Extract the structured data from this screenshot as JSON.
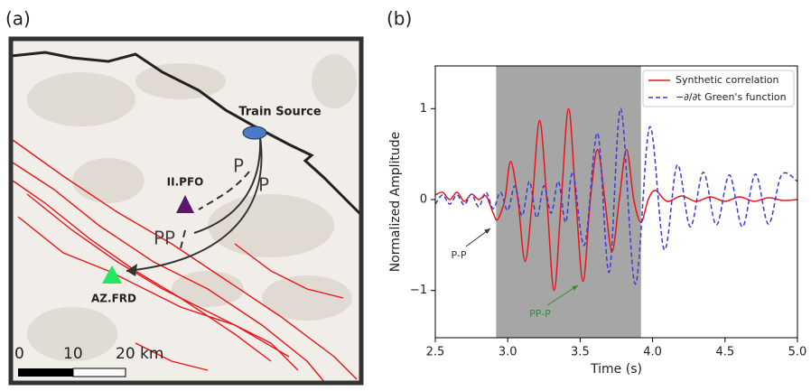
{
  "map": {
    "panel_label": "(a)",
    "source_label": "Train Source",
    "station_1": "II.PFO",
    "station_2": "AZ.FRD",
    "phase_1": "P",
    "phase_2": "P",
    "phase_3": "PP",
    "scale_ticks": [
      "0",
      "10",
      "20 km"
    ]
  },
  "chart_data": {
    "type": "line",
    "panel_label": "(b)",
    "xlabel": "Time (s)",
    "ylabel": "Normalized Amplitude",
    "xlim": [
      2.5,
      5.0
    ],
    "ylim": [
      -1.52,
      1.47
    ],
    "xticks": [
      2.5,
      {
        "value": 3,
        "label": "3.0"
      },
      3.5,
      {
        "value": 4,
        "label": "4.0"
      },
      4.5,
      {
        "value": 5,
        "label": "5.0"
      }
    ],
    "yticks": [
      {
        "value": -1,
        "label": "−1"
      },
      0,
      1
    ],
    "shaded_region": [
      2.92,
      3.92
    ],
    "shade_color": "#a6a6a6",
    "legend": "upper right",
    "annotations": [
      {
        "text": "P-P",
        "color": "#333333"
      },
      {
        "text": "PP-P",
        "color": "#3a8a3a"
      }
    ],
    "series": [
      {
        "name": "Synthetic correlation",
        "color": "#e8161b",
        "dashed": false,
        "x": [
          2.5,
          2.55,
          2.6,
          2.65,
          2.7,
          2.75,
          2.8,
          2.85,
          2.9,
          2.93,
          2.98,
          3.02,
          3.07,
          3.12,
          3.17,
          3.22,
          3.27,
          3.32,
          3.37,
          3.42,
          3.47,
          3.52,
          3.57,
          3.62,
          3.67,
          3.72,
          3.77,
          3.82,
          3.87,
          3.92,
          3.97,
          4.02,
          4.1,
          4.2,
          4.3,
          4.4,
          4.5,
          4.6,
          4.7,
          4.8,
          4.9,
          5.0
        ],
        "values": [
          0.05,
          0.08,
          0.0,
          0.08,
          -0.02,
          0.06,
          0.0,
          0.04,
          -0.15,
          -0.22,
          0.0,
          0.42,
          0.0,
          -0.68,
          0.0,
          0.87,
          0.0,
          -1.0,
          0.0,
          1.0,
          0.0,
          -0.9,
          0.0,
          0.55,
          0.0,
          -0.57,
          0.0,
          0.55,
          0.0,
          -0.25,
          0.0,
          0.1,
          -0.02,
          0.04,
          -0.02,
          0.03,
          -0.02,
          0.03,
          -0.02,
          0.02,
          -0.01,
          0.0
        ]
      },
      {
        "name": "−∂/∂t Green's function",
        "color": "#3b3bdc",
        "dashed": true,
        "x": [
          2.5,
          2.55,
          2.6,
          2.65,
          2.7,
          2.75,
          2.8,
          2.85,
          2.9,
          2.95,
          3.0,
          3.05,
          3.1,
          3.15,
          3.2,
          3.25,
          3.3,
          3.35,
          3.4,
          3.45,
          3.53,
          3.62,
          3.7,
          3.78,
          3.88,
          3.98,
          4.08,
          4.17,
          4.26,
          4.35,
          4.44,
          4.53,
          4.62,
          4.71,
          4.8,
          4.89,
          5.0
        ],
        "values": [
          -0.05,
          0.05,
          -0.05,
          0.05,
          -0.06,
          0.06,
          -0.08,
          0.08,
          -0.1,
          0.08,
          -0.12,
          0.15,
          -0.18,
          0.2,
          -0.2,
          0.15,
          -0.15,
          0.2,
          -0.25,
          0.3,
          -0.5,
          0.73,
          -0.8,
          1.0,
          -0.93,
          0.8,
          -0.55,
          0.38,
          -0.3,
          0.3,
          -0.28,
          0.27,
          -0.3,
          0.28,
          -0.27,
          0.27,
          0.2
        ]
      }
    ]
  }
}
